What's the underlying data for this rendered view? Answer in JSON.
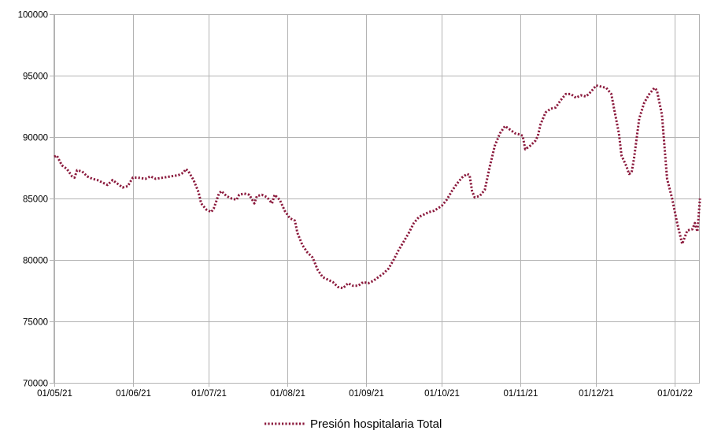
{
  "chart_data": {
    "type": "line",
    "title": "",
    "xlabel": "",
    "ylabel": "",
    "ylim": [
      70000,
      100000
    ],
    "y_ticks": [
      "100000",
      "95000",
      "90000",
      "85000",
      "80000",
      "75000",
      "70000"
    ],
    "x_ticks": [
      "01/05/21",
      "01/06/21",
      "01/07/21",
      "01/08/21",
      "01/09/21",
      "01/10/21",
      "01/11/21",
      "01/12/21",
      "01/01/22"
    ],
    "grid": true,
    "legend_position": "bottom",
    "series": [
      {
        "name": "Presión hospitalaria Total",
        "color": "#8b1a3d",
        "line_style": "dotted",
        "points": [
          [
            "2021-05-01",
            88400
          ],
          [
            "2021-05-02",
            88500
          ],
          [
            "2021-05-04",
            87700
          ],
          [
            "2021-05-06",
            87400
          ],
          [
            "2021-05-08",
            86800
          ],
          [
            "2021-05-09",
            86700
          ],
          [
            "2021-05-10",
            87300
          ],
          [
            "2021-05-12",
            87200
          ],
          [
            "2021-05-14",
            86800
          ],
          [
            "2021-05-16",
            86600
          ],
          [
            "2021-05-18",
            86500
          ],
          [
            "2021-05-20",
            86300
          ],
          [
            "2021-05-22",
            86100
          ],
          [
            "2021-05-24",
            86500
          ],
          [
            "2021-05-26",
            86200
          ],
          [
            "2021-05-28",
            85900
          ],
          [
            "2021-05-30",
            86000
          ],
          [
            "2021-06-01",
            86700
          ],
          [
            "2021-06-03",
            86700
          ],
          [
            "2021-06-06",
            86600
          ],
          [
            "2021-06-08",
            86800
          ],
          [
            "2021-06-10",
            86600
          ],
          [
            "2021-06-13",
            86700
          ],
          [
            "2021-06-16",
            86800
          ],
          [
            "2021-06-19",
            86900
          ],
          [
            "2021-06-21",
            87100
          ],
          [
            "2021-06-22",
            87400
          ],
          [
            "2021-06-23",
            87200
          ],
          [
            "2021-06-25",
            86500
          ],
          [
            "2021-06-27",
            85500
          ],
          [
            "2021-06-28",
            84600
          ],
          [
            "2021-06-30",
            84100
          ],
          [
            "2021-07-02",
            83900
          ],
          [
            "2021-07-03",
            84200
          ],
          [
            "2021-07-05",
            85400
          ],
          [
            "2021-07-06",
            85600
          ],
          [
            "2021-07-08",
            85200
          ],
          [
            "2021-07-10",
            85000
          ],
          [
            "2021-07-12",
            84900
          ],
          [
            "2021-07-13",
            85300
          ],
          [
            "2021-07-15",
            85400
          ],
          [
            "2021-07-17",
            85300
          ],
          [
            "2021-07-19",
            84600
          ],
          [
            "2021-07-20",
            85200
          ],
          [
            "2021-07-22",
            85300
          ],
          [
            "2021-07-24",
            85100
          ],
          [
            "2021-07-26",
            84600
          ],
          [
            "2021-07-27",
            85300
          ],
          [
            "2021-07-29",
            84900
          ],
          [
            "2021-07-31",
            84000
          ],
          [
            "2021-08-02",
            83400
          ],
          [
            "2021-08-04",
            83200
          ],
          [
            "2021-08-05",
            82200
          ],
          [
            "2021-08-07",
            81200
          ],
          [
            "2021-08-09",
            80600
          ],
          [
            "2021-08-11",
            80200
          ],
          [
            "2021-08-13",
            79200
          ],
          [
            "2021-08-15",
            78600
          ],
          [
            "2021-08-17",
            78400
          ],
          [
            "2021-08-19",
            78200
          ],
          [
            "2021-08-21",
            77800
          ],
          [
            "2021-08-23",
            77700
          ],
          [
            "2021-08-25",
            78100
          ],
          [
            "2021-08-27",
            77900
          ],
          [
            "2021-08-29",
            77900
          ],
          [
            "2021-08-31",
            78200
          ],
          [
            "2021-09-02",
            78100
          ],
          [
            "2021-09-04",
            78300
          ],
          [
            "2021-09-06",
            78600
          ],
          [
            "2021-09-08",
            78900
          ],
          [
            "2021-09-10",
            79300
          ],
          [
            "2021-09-12",
            80000
          ],
          [
            "2021-09-14",
            80800
          ],
          [
            "2021-09-16",
            81500
          ],
          [
            "2021-09-18",
            82200
          ],
          [
            "2021-09-20",
            83000
          ],
          [
            "2021-09-22",
            83500
          ],
          [
            "2021-09-24",
            83700
          ],
          [
            "2021-09-26",
            83900
          ],
          [
            "2021-09-28",
            84000
          ],
          [
            "2021-10-01",
            84400
          ],
          [
            "2021-10-03",
            84900
          ],
          [
            "2021-10-05",
            85600
          ],
          [
            "2021-10-07",
            86200
          ],
          [
            "2021-10-09",
            86700
          ],
          [
            "2021-10-11",
            87000
          ],
          [
            "2021-10-12",
            86900
          ],
          [
            "2021-10-13",
            85600
          ],
          [
            "2021-10-14",
            85100
          ],
          [
            "2021-10-16",
            85200
          ],
          [
            "2021-10-18",
            85700
          ],
          [
            "2021-10-20",
            87600
          ],
          [
            "2021-10-22",
            89300
          ],
          [
            "2021-10-24",
            90300
          ],
          [
            "2021-10-26",
            90900
          ],
          [
            "2021-10-28",
            90600
          ],
          [
            "2021-10-30",
            90300
          ],
          [
            "2021-11-01",
            90200
          ],
          [
            "2021-11-02",
            90100
          ],
          [
            "2021-11-03",
            89000
          ],
          [
            "2021-11-05",
            89300
          ],
          [
            "2021-11-07",
            89700
          ],
          [
            "2021-11-08",
            90100
          ],
          [
            "2021-11-09",
            91000
          ],
          [
            "2021-11-11",
            92000
          ],
          [
            "2021-11-13",
            92300
          ],
          [
            "2021-11-15",
            92400
          ],
          [
            "2021-11-17",
            93000
          ],
          [
            "2021-11-19",
            93500
          ],
          [
            "2021-11-21",
            93500
          ],
          [
            "2021-11-23",
            93200
          ],
          [
            "2021-11-25",
            93400
          ],
          [
            "2021-11-27",
            93300
          ],
          [
            "2021-11-29",
            93700
          ],
          [
            "2021-12-01",
            94200
          ],
          [
            "2021-12-03",
            94100
          ],
          [
            "2021-12-05",
            94000
          ],
          [
            "2021-12-07",
            93500
          ],
          [
            "2021-12-08",
            92400
          ],
          [
            "2021-12-10",
            90300
          ],
          [
            "2021-12-11",
            88500
          ],
          [
            "2021-12-13",
            87600
          ],
          [
            "2021-12-14",
            87000
          ],
          [
            "2021-12-15",
            87100
          ],
          [
            "2021-12-16",
            88300
          ],
          [
            "2021-12-18",
            91500
          ],
          [
            "2021-12-20",
            92800
          ],
          [
            "2021-12-22",
            93500
          ],
          [
            "2021-12-24",
            94000
          ],
          [
            "2021-12-25",
            93800
          ],
          [
            "2021-12-27",
            91800
          ],
          [
            "2021-12-29",
            86600
          ],
          [
            "2021-12-31",
            85000
          ],
          [
            "2022-01-02",
            83000
          ],
          [
            "2022-01-04",
            81300
          ],
          [
            "2022-01-06",
            82400
          ],
          [
            "2022-01-08",
            82500
          ],
          [
            "2022-01-09",
            83000
          ],
          [
            "2022-01-10",
            82300
          ],
          [
            "2022-01-11",
            85000
          ]
        ]
      }
    ]
  }
}
